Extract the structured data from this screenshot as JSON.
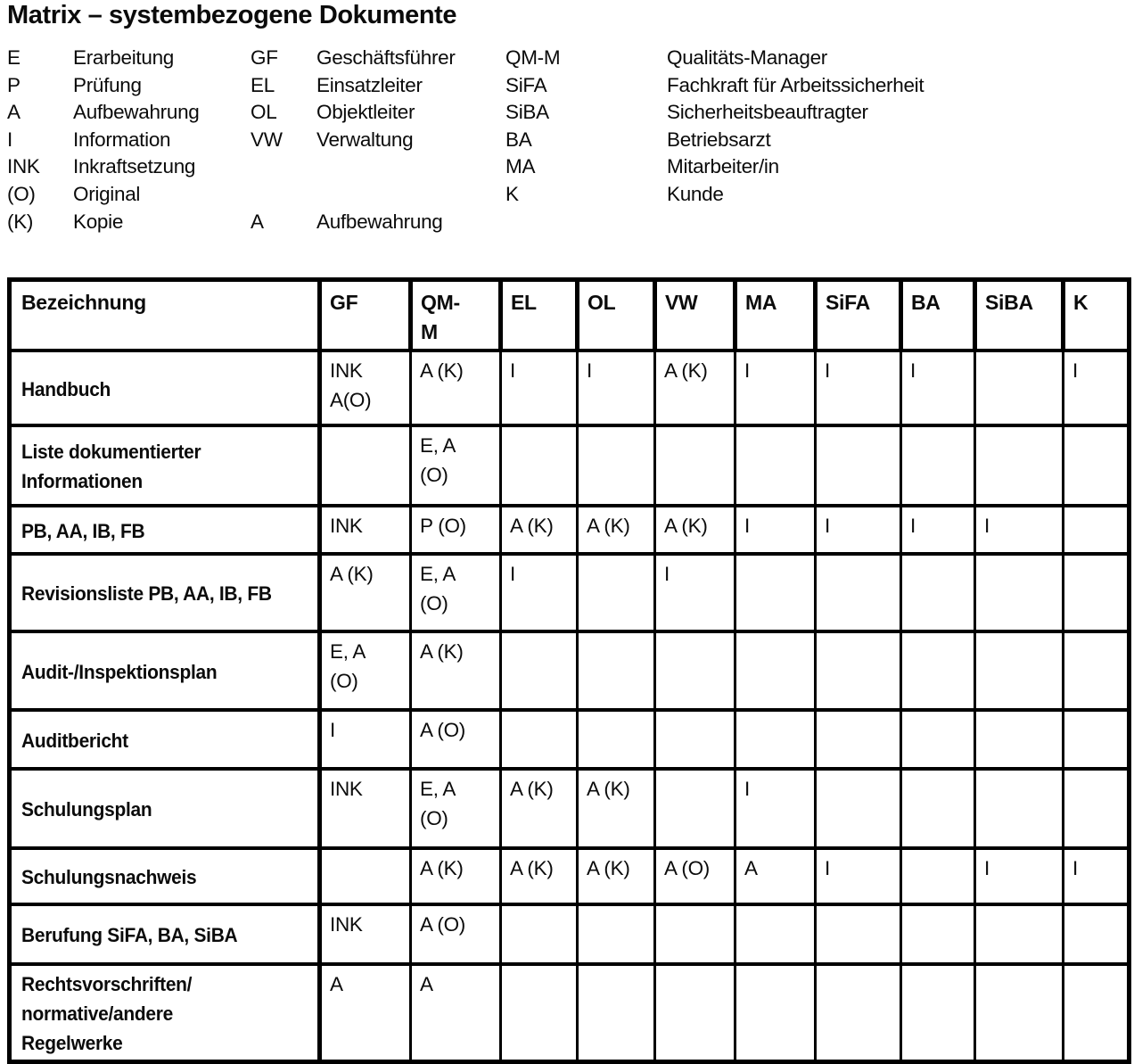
{
  "title": "Matrix – systembezogene Dokumente",
  "legend": {
    "rows": [
      [
        "E",
        "Erarbeitung",
        "GF",
        "Geschäftsführer",
        "QM-M",
        "Qualitäts-Manager"
      ],
      [
        "P",
        "Prüfung",
        "EL",
        "Einsatzleiter",
        "SiFA",
        "Fachkraft für Arbeitssicherheit"
      ],
      [
        "A",
        "Aufbewahrung",
        "OL",
        "Objektleiter",
        "SiBA",
        "Sicherheitsbeauftragter"
      ],
      [
        "I",
        "Information",
        "VW",
        "Verwaltung",
        "BA",
        "Betriebsarzt"
      ],
      [
        "INK",
        "Inkraftsetzung",
        "",
        "",
        "MA",
        "Mitarbeiter/in"
      ],
      [
        "(O)",
        "Original",
        "",
        "",
        "K",
        "Kunde"
      ],
      [
        "(K)",
        "Kopie",
        "A",
        "Aufbewahrung",
        "",
        ""
      ]
    ]
  },
  "table": {
    "headers": [
      "Bezeichnung",
      "GF",
      "QM-\nM",
      "EL",
      "OL",
      "VW",
      "MA",
      "SiFA",
      "BA",
      "SiBA",
      "K"
    ],
    "rows": [
      {
        "label": "Handbuch",
        "cells": [
          "INK\nA(O)",
          "A (K)",
          "I",
          "I",
          "A (K)",
          "I",
          "I",
          "I",
          "",
          "I"
        ]
      },
      {
        "label": "Liste dokumentierter\nInformationen",
        "cells": [
          "",
          "E, A\n(O)",
          "",
          "",
          "",
          "",
          "",
          "",
          "",
          ""
        ]
      },
      {
        "label": "PB, AA, IB, FB",
        "cells": [
          "INK",
          "P (O)",
          "A (K)",
          "A (K)",
          "A (K)",
          "I",
          "I",
          "I",
          "I",
          ""
        ]
      },
      {
        "label": "Revisionsliste PB, AA, IB, FB",
        "cells": [
          "A (K)",
          "E, A\n(O)",
          "I",
          "",
          "I",
          "",
          "",
          "",
          "",
          ""
        ]
      },
      {
        "label": "Audit-/Inspektionsplan",
        "cells": [
          "E, A\n(O)",
          "A (K)",
          "",
          "",
          "",
          "",
          "",
          "",
          "",
          ""
        ]
      },
      {
        "label": "Auditbericht",
        "cells": [
          "I",
          "A (O)",
          "",
          "",
          "",
          "",
          "",
          "",
          "",
          ""
        ]
      },
      {
        "label": "Schulungsplan",
        "cells": [
          "INK",
          "E, A\n(O)",
          "A (K)",
          "A (K)",
          "",
          "I",
          "",
          "",
          "",
          ""
        ]
      },
      {
        "label": "Schulungsnachweis",
        "cells": [
          "",
          "A (K)",
          "A (K)",
          "A (K)",
          "A (O)",
          "A",
          "I",
          "",
          "I",
          "I"
        ]
      },
      {
        "label": "Berufung SiFA, BA, SiBA",
        "cells": [
          "INK",
          "A (O)",
          "",
          "",
          "",
          "",
          "",
          "",
          "",
          ""
        ]
      },
      {
        "label": "Rechtsvorschriften/\nnormative/andere\nRegelwerke",
        "cells": [
          "A",
          "A",
          "",
          "",
          "",
          "",
          "",
          "",
          "",
          ""
        ]
      }
    ]
  }
}
